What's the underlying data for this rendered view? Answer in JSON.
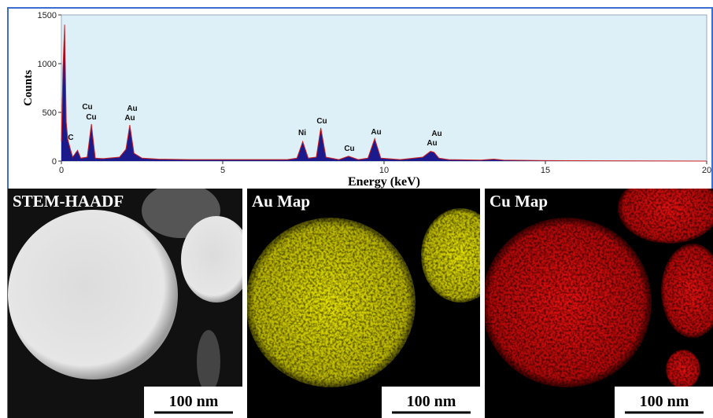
{
  "chart_data": {
    "type": "area",
    "xlabel": "Energy (keV)",
    "ylabel": "Counts",
    "x": [
      0,
      0.05,
      0.1,
      0.15,
      0.2,
      0.28,
      0.35,
      0.5,
      0.6,
      0.8,
      0.93,
      1.05,
      1.3,
      1.8,
      2.0,
      2.12,
      2.25,
      2.5,
      3,
      4,
      5,
      6,
      7,
      7.3,
      7.48,
      7.65,
      7.9,
      8.04,
      8.2,
      8.6,
      8.9,
      9.2,
      9.5,
      9.71,
      9.9,
      10.5,
      11.2,
      11.44,
      11.55,
      11.7,
      12,
      13,
      13.4,
      13.7,
      15,
      20
    ],
    "values": [
      200,
      950,
      1400,
      400,
      220,
      120,
      40,
      110,
      30,
      40,
      380,
      30,
      25,
      40,
      120,
      370,
      80,
      30,
      20,
      15,
      15,
      15,
      15,
      30,
      200,
      30,
      40,
      340,
      40,
      15,
      50,
      15,
      30,
      230,
      30,
      15,
      40,
      100,
      90,
      30,
      15,
      10,
      20,
      10,
      5,
      0
    ],
    "color": "#1a1a8c",
    "line_color": "#d02020",
    "xlim": [
      0,
      20
    ],
    "ylim": [
      0,
      1500
    ],
    "xticks": [
      0,
      5,
      10,
      15,
      20
    ],
    "yticks": [
      0,
      500,
      1000,
      1500
    ],
    "annotations": [
      "C",
      "Cu",
      "Cu",
      "Au",
      "Au",
      "Ni",
      "Cu",
      "Cu",
      "Au",
      "Au",
      "Au"
    ]
  },
  "panels": [
    {
      "label": "STEM-HAADF",
      "scale_bar": "100 nm"
    },
    {
      "label": "Au Map",
      "scale_bar": "100 nm"
    },
    {
      "label": "Cu Map",
      "scale_bar": "100 nm"
    }
  ]
}
